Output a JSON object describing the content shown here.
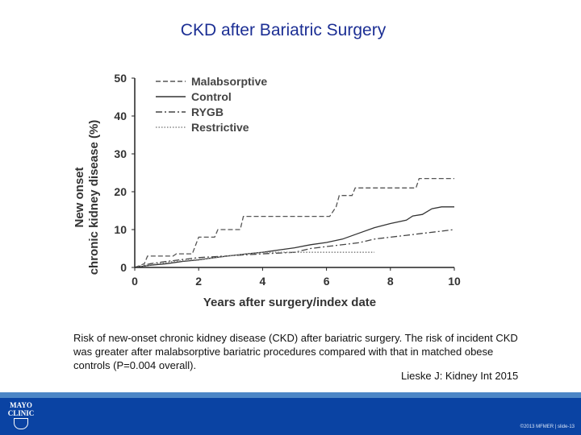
{
  "slide": {
    "title": "CKD after Bariatric Surgery",
    "caption": "Risk of new-onset chronic kidney disease (CKD) after bariatric surgery.  The risk of incident CKD was greater after malabsorptive bariatric procedures compared with that in matched obese controls (P=0.004 overall).",
    "citation": "Lieske J:  Kidney Int 2015",
    "logo_lines": [
      "MAYO",
      "CLINIC"
    ],
    "footer_text": "©2013 MFMER  |  slide-13",
    "colors": {
      "title": "#1c2f94",
      "footer": "#0a43a3",
      "footer_line": "#4c86c6"
    }
  },
  "chart_data": {
    "type": "line",
    "title": "",
    "xlabel": "Years after surgery/index date",
    "ylabel": [
      "New onset",
      "chronic kidney disease (%)"
    ],
    "xlim": [
      0,
      10
    ],
    "ylim": [
      0,
      50
    ],
    "xticks": [
      0,
      2,
      4,
      6,
      8,
      10
    ],
    "yticks": [
      0,
      10,
      20,
      30,
      40,
      50
    ],
    "grid": false,
    "legend_position": "top-left",
    "series": [
      {
        "name": "Malabsorptive",
        "style": "dashed",
        "points": [
          [
            0,
            0
          ],
          [
            0.3,
            1
          ],
          [
            0.4,
            3
          ],
          [
            1.2,
            3
          ],
          [
            1.3,
            3.6
          ],
          [
            1.8,
            3.6
          ],
          [
            2,
            8
          ],
          [
            2.5,
            8
          ],
          [
            2.6,
            10
          ],
          [
            3.3,
            10
          ],
          [
            3.4,
            13.5
          ],
          [
            6.1,
            13.5
          ],
          [
            6.3,
            16
          ],
          [
            6.4,
            19
          ],
          [
            6.8,
            19
          ],
          [
            6.9,
            21
          ],
          [
            8.8,
            21
          ],
          [
            8.9,
            23.5
          ],
          [
            10,
            23.5
          ]
        ]
      },
      {
        "name": "Control",
        "style": "solid",
        "points": [
          [
            0,
            0
          ],
          [
            0.5,
            0.6
          ],
          [
            1,
            1
          ],
          [
            1.5,
            1.6
          ],
          [
            2,
            2
          ],
          [
            2.5,
            2.6
          ],
          [
            3,
            3.1
          ],
          [
            3.5,
            3.6
          ],
          [
            4,
            4
          ],
          [
            4.5,
            4.6
          ],
          [
            5,
            5.2
          ],
          [
            5.5,
            6
          ],
          [
            6,
            6.6
          ],
          [
            6.5,
            7.5
          ],
          [
            7,
            9
          ],
          [
            7.5,
            10.5
          ],
          [
            8,
            11.6
          ],
          [
            8.5,
            12.5
          ],
          [
            8.7,
            13.6
          ],
          [
            9,
            14
          ],
          [
            9.3,
            15.5
          ],
          [
            9.6,
            16
          ],
          [
            10,
            16
          ]
        ]
      },
      {
        "name": "RYGB",
        "style": "dashdot",
        "points": [
          [
            0,
            0
          ],
          [
            0.5,
            1
          ],
          [
            1,
            1.6
          ],
          [
            2,
            2.6
          ],
          [
            3,
            3.1
          ],
          [
            4,
            3.6
          ],
          [
            5,
            4
          ],
          [
            5.5,
            5
          ],
          [
            6,
            5.5
          ],
          [
            7,
            6.5
          ],
          [
            7.5,
            7.5
          ],
          [
            8,
            8
          ],
          [
            8.5,
            8.5
          ],
          [
            9,
            9
          ],
          [
            9.5,
            9.5
          ],
          [
            10,
            10
          ]
        ]
      },
      {
        "name": "Restrictive",
        "style": "dotted",
        "points": [
          [
            0,
            0
          ],
          [
            0.7,
            1
          ],
          [
            1.2,
            1.6
          ],
          [
            2,
            2.1
          ],
          [
            3,
            3.1
          ],
          [
            4,
            4
          ],
          [
            7.5,
            4
          ]
        ]
      }
    ]
  }
}
